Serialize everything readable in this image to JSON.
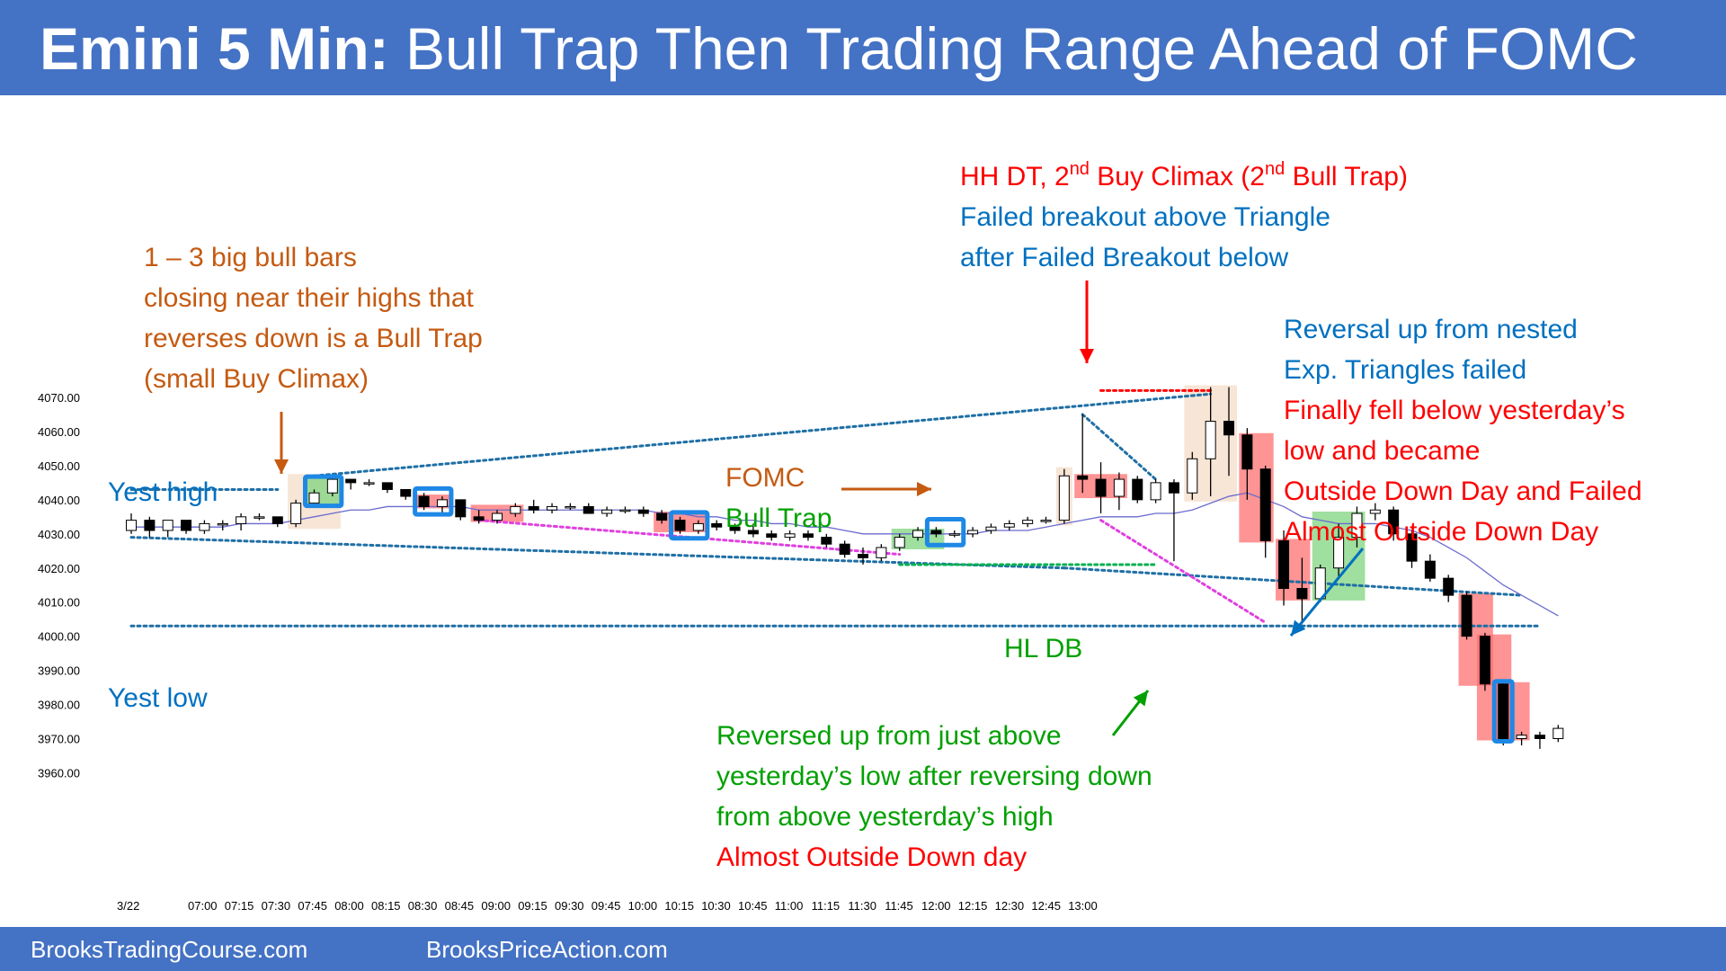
{
  "header": {
    "title_bold": "Emini 5 Min:",
    "title_rest": " Bull Trap Then Trading Range Ahead of FOMC"
  },
  "footer": {
    "left_link": "BrooksTradingCourse.com",
    "right_link": "BrooksPriceAction.com"
  },
  "colors": {
    "header_bg": "#4472c4",
    "orange": "#c55a11",
    "blue": "#0070c0",
    "red": "#ff0000",
    "green": "#00a000",
    "dark_green": "#00b050",
    "magenta": "#e040e0",
    "teal_dots": "#1f6fa5"
  },
  "chart_data": {
    "type": "candlestick",
    "date_label": "3/22",
    "x_tick_labels": [
      "07:00",
      "07:15",
      "07:30",
      "07:45",
      "08:00",
      "08:15",
      "08:30",
      "08:45",
      "09:00",
      "09:15",
      "09:30",
      "09:45",
      "10:00",
      "10:15",
      "10:30",
      "10:45",
      "11:00",
      "11:15",
      "11:30",
      "11:45",
      "12:00",
      "12:15",
      "12:30",
      "12:45",
      "13:00"
    ],
    "y_tick_labels": [
      "4070.00",
      "4060.00",
      "4050.00",
      "4040.00",
      "4030.00",
      "4020.00",
      "4010.00",
      "4000.00",
      "3990.00",
      "3980.00",
      "3970.00",
      "3960.00"
    ],
    "ylim": [
      3960,
      4070
    ],
    "reference_lines": [
      {
        "label": "Yest high",
        "value": 4043
      },
      {
        "label": "Yest low",
        "value": 4003
      }
    ],
    "candles": [
      {
        "time": "06:40",
        "o": 4031,
        "h": 4036,
        "l": 4030,
        "c": 4034
      },
      {
        "time": "06:45",
        "o": 4034,
        "h": 4035,
        "l": 4029,
        "c": 4031
      },
      {
        "time": "06:50",
        "o": 4031,
        "h": 4034,
        "l": 4029,
        "c": 4034
      },
      {
        "time": "06:55",
        "o": 4034,
        "h": 4034,
        "l": 4030,
        "c": 4031
      },
      {
        "time": "07:00",
        "o": 4031,
        "h": 4034,
        "l": 4030,
        "c": 4033
      },
      {
        "time": "07:05",
        "o": 4033,
        "h": 4034,
        "l": 4031,
        "c": 4033
      },
      {
        "time": "07:10",
        "o": 4033,
        "h": 4036,
        "l": 4031,
        "c": 4035
      },
      {
        "time": "07:15",
        "o": 4035,
        "h": 4036,
        "l": 4034,
        "c": 4035
      },
      {
        "time": "07:20",
        "o": 4035,
        "h": 4035,
        "l": 4032,
        "c": 4033
      },
      {
        "time": "07:25",
        "o": 4033,
        "h": 4040,
        "l": 4032,
        "c": 4039
      },
      {
        "time": "07:30",
        "o": 4039,
        "h": 4043,
        "l": 4038,
        "c": 4042
      },
      {
        "time": "07:35",
        "o": 4042,
        "h": 4047,
        "l": 4041,
        "c": 4046
      },
      {
        "time": "07:40",
        "o": 4046,
        "h": 4046,
        "l": 4043,
        "c": 4045
      },
      {
        "time": "07:45",
        "o": 4045,
        "h": 4046,
        "l": 4044,
        "c": 4045
      },
      {
        "time": "07:50",
        "o": 4045,
        "h": 4045,
        "l": 4042,
        "c": 4043
      },
      {
        "time": "07:55",
        "o": 4043,
        "h": 4043,
        "l": 4040,
        "c": 4041
      },
      {
        "time": "08:00",
        "o": 4041,
        "h": 4042,
        "l": 4037,
        "c": 4038
      },
      {
        "time": "08:05",
        "o": 4038,
        "h": 4041,
        "l": 4036,
        "c": 4040
      },
      {
        "time": "08:10",
        "o": 4040,
        "h": 4040,
        "l": 4034,
        "c": 4035
      },
      {
        "time": "08:15",
        "o": 4035,
        "h": 4037,
        "l": 4033,
        "c": 4034
      },
      {
        "time": "08:20",
        "o": 4034,
        "h": 4037,
        "l": 4033,
        "c": 4036
      },
      {
        "time": "08:25",
        "o": 4036,
        "h": 4039,
        "l": 4035,
        "c": 4038
      },
      {
        "time": "08:30",
        "o": 4038,
        "h": 4040,
        "l": 4036,
        "c": 4037
      },
      {
        "time": "08:35",
        "o": 4037,
        "h": 4039,
        "l": 4036,
        "c": 4038
      },
      {
        "time": "08:40",
        "o": 4038,
        "h": 4039,
        "l": 4037,
        "c": 4038
      },
      {
        "time": "08:45",
        "o": 4038,
        "h": 4039,
        "l": 4036,
        "c": 4036
      },
      {
        "time": "08:50",
        "o": 4036,
        "h": 4038,
        "l": 4035,
        "c": 4037
      },
      {
        "time": "08:55",
        "o": 4037,
        "h": 4038,
        "l": 4036,
        "c": 4037
      },
      {
        "time": "09:00",
        "o": 4037,
        "h": 4038,
        "l": 4035,
        "c": 4036
      },
      {
        "time": "09:05",
        "o": 4036,
        "h": 4037,
        "l": 4033,
        "c": 4034
      },
      {
        "time": "09:10",
        "o": 4034,
        "h": 4035,
        "l": 4030,
        "c": 4031
      },
      {
        "time": "09:15",
        "o": 4031,
        "h": 4034,
        "l": 4030,
        "c": 4033
      },
      {
        "time": "09:20",
        "o": 4033,
        "h": 4034,
        "l": 4031,
        "c": 4032
      },
      {
        "time": "09:25",
        "o": 4032,
        "h": 4033,
        "l": 4030,
        "c": 4031
      },
      {
        "time": "09:30",
        "o": 4031,
        "h": 4033,
        "l": 4029,
        "c": 4030
      },
      {
        "time": "09:35",
        "o": 4030,
        "h": 4031,
        "l": 4028,
        "c": 4029
      },
      {
        "time": "09:40",
        "o": 4029,
        "h": 4031,
        "l": 4028,
        "c": 4030
      },
      {
        "time": "09:45",
        "o": 4030,
        "h": 4031,
        "l": 4028,
        "c": 4029
      },
      {
        "time": "09:50",
        "o": 4029,
        "h": 4030,
        "l": 4026,
        "c": 4027
      },
      {
        "time": "09:55",
        "o": 4027,
        "h": 4028,
        "l": 4023,
        "c": 4024
      },
      {
        "time": "10:00",
        "o": 4024,
        "h": 4026,
        "l": 4021,
        "c": 4023
      },
      {
        "time": "10:05",
        "o": 4023,
        "h": 4027,
        "l": 4022,
        "c": 4026
      },
      {
        "time": "10:10",
        "o": 4026,
        "h": 4030,
        "l": 4025,
        "c": 4029
      },
      {
        "time": "10:15",
        "o": 4029,
        "h": 4032,
        "l": 4028,
        "c": 4031
      },
      {
        "time": "10:20",
        "o": 4031,
        "h": 4032,
        "l": 4029,
        "c": 4030
      },
      {
        "time": "10:25",
        "o": 4030,
        "h": 4031,
        "l": 4029,
        "c": 4030
      },
      {
        "time": "10:30",
        "o": 4030,
        "h": 4032,
        "l": 4029,
        "c": 4031
      },
      {
        "time": "10:35",
        "o": 4031,
        "h": 4033,
        "l": 4030,
        "c": 4032
      },
      {
        "time": "10:40",
        "o": 4032,
        "h": 4034,
        "l": 4031,
        "c": 4033
      },
      {
        "time": "10:45",
        "o": 4033,
        "h": 4035,
        "l": 4032,
        "c": 4034
      },
      {
        "time": "10:50",
        "o": 4034,
        "h": 4035,
        "l": 4033,
        "c": 4034
      },
      {
        "time": "10:55",
        "o": 4034,
        "h": 4049,
        "l": 4033,
        "c": 4047
      },
      {
        "time": "11:00",
        "o": 4047,
        "h": 4065,
        "l": 4042,
        "c": 4046
      },
      {
        "time": "11:05",
        "o": 4046,
        "h": 4051,
        "l": 4036,
        "c": 4041
      },
      {
        "time": "11:10",
        "o": 4041,
        "h": 4048,
        "l": 4037,
        "c": 4046
      },
      {
        "time": "11:15",
        "o": 4046,
        "h": 4047,
        "l": 4039,
        "c": 4040
      },
      {
        "time": "11:20",
        "o": 4040,
        "h": 4046,
        "l": 4039,
        "c": 4045
      },
      {
        "time": "11:25",
        "o": 4045,
        "h": 4046,
        "l": 4022,
        "c": 4042
      },
      {
        "time": "11:30",
        "o": 4042,
        "h": 4054,
        "l": 4040,
        "c": 4052
      },
      {
        "time": "11:35",
        "o": 4052,
        "h": 4073,
        "l": 4041,
        "c": 4063
      },
      {
        "time": "11:40",
        "o": 4063,
        "h": 4073,
        "l": 4047,
        "c": 4059
      },
      {
        "time": "11:45",
        "o": 4059,
        "h": 4061,
        "l": 4040,
        "c": 4049
      },
      {
        "time": "11:50",
        "o": 4049,
        "h": 4050,
        "l": 4023,
        "c": 4028
      },
      {
        "time": "11:55",
        "o": 4028,
        "h": 4031,
        "l": 4009,
        "c": 4014
      },
      {
        "time": "12:00",
        "o": 4014,
        "h": 4023,
        "l": 4004,
        "c": 4011
      },
      {
        "time": "12:05",
        "o": 4011,
        "h": 4021,
        "l": 4010,
        "c": 4020
      },
      {
        "time": "12:10",
        "o": 4020,
        "h": 4033,
        "l": 4017,
        "c": 4029
      },
      {
        "time": "12:15",
        "o": 4029,
        "h": 4038,
        "l": 4026,
        "c": 4036
      },
      {
        "time": "12:20",
        "o": 4036,
        "h": 4039,
        "l": 4034,
        "c": 4037
      },
      {
        "time": "12:25",
        "o": 4037,
        "h": 4038,
        "l": 4028,
        "c": 4030
      },
      {
        "time": "12:30",
        "o": 4030,
        "h": 4031,
        "l": 4020,
        "c": 4022
      },
      {
        "time": "12:35",
        "o": 4022,
        "h": 4024,
        "l": 4016,
        "c": 4017
      },
      {
        "time": "12:40",
        "o": 4017,
        "h": 4018,
        "l": 4010,
        "c": 4012
      },
      {
        "time": "12:45",
        "o": 4012,
        "h": 4013,
        "l": 3999,
        "c": 4000
      },
      {
        "time": "12:50",
        "o": 4000,
        "h": 4001,
        "l": 3984,
        "c": 3986
      },
      {
        "time": "12:55",
        "o": 3986,
        "h": 3987,
        "l": 3968,
        "c": 3970
      },
      {
        "time": "13:00",
        "o": 3970,
        "h": 3972,
        "l": 3968,
        "c": 3971
      },
      {
        "time": "13:05",
        "o": 3971,
        "h": 3972,
        "l": 3967,
        "c": 3970
      },
      {
        "time": "13:10",
        "o": 3970,
        "h": 3974,
        "l": 3969,
        "c": 3973
      }
    ],
    "ema": [
      4032,
      4032,
      4032,
      4032,
      4032,
      4032,
      4033,
      4033,
      4033,
      4034,
      4035,
      4036,
      4037,
      4037,
      4038,
      4038,
      4038,
      4038,
      4038,
      4037,
      4037,
      4037,
      4037,
      4037,
      4037,
      4037,
      4037,
      4037,
      4037,
      4036,
      4036,
      4035,
      4035,
      4034,
      4034,
      4033,
      4033,
      4032,
      4032,
      4031,
      4030,
      4030,
      4030,
      4030,
      4030,
      4030,
      4030,
      4031,
      4031,
      4031,
      4032,
      4033,
      4034,
      4035,
      4035,
      4035,
      4036,
      4036,
      4037,
      4039,
      4041,
      4042,
      4040,
      4038,
      4035,
      4034,
      4033,
      4033,
      4033,
      4032,
      4031,
      4029,
      4026,
      4023,
      4019,
      4015,
      4012,
      4009,
      4006
    ],
    "annotations": [
      {
        "lines": [
          "1 – 3 big bull bars",
          "closing near their highs that",
          "reverses down is a Bull Trap",
          "(small Buy Climax)"
        ]
      },
      {
        "lines": [
          "FOMC",
          "Bull Trap"
        ]
      },
      {
        "lines": [
          "HH DT, 2",
          "nd",
          " Buy Climax (2",
          "nd",
          " Bull Trap)",
          "Failed breakout above Triangle",
          "after Failed Breakout below"
        ]
      },
      {
        "lines": [
          "Reversal up from nested",
          "Exp. Triangles failed",
          "Finally fell below yesterday’s",
          "low and became",
          "Outside Down Day and Failed",
          "Almost Outside Down Day"
        ]
      },
      {
        "lines": [
          "HL DB"
        ]
      },
      {
        "lines": [
          "Reversed up from just above",
          "yesterday’s low after reversing down",
          "from above yesterday’s high",
          "Almost Outside Down day"
        ]
      }
    ]
  }
}
